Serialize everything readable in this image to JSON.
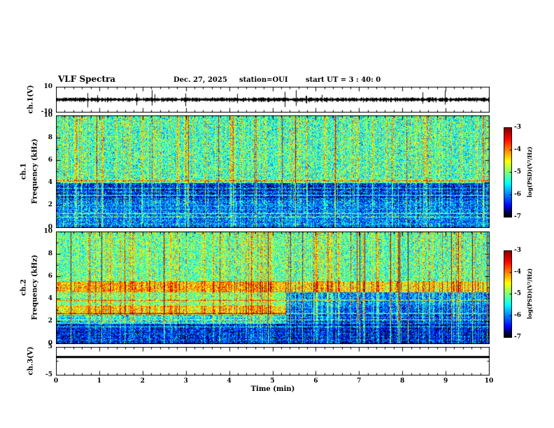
{
  "header": {
    "title": "VLF Spectra",
    "date": "Dec. 27, 2025",
    "station": "station=OUI",
    "start_ut": "start UT =  3 : 40: 0"
  },
  "panels": {
    "ch1_wave": {
      "ylabel": "ch.1(V)",
      "yticks": [
        10,
        -10
      ],
      "ymin": -10,
      "ymax": 10
    },
    "ch1_spec": {
      "channel": "ch.1",
      "ylabel": "Frequency (kHz)",
      "yticks": [
        10,
        8,
        6,
        4,
        2,
        0
      ]
    },
    "ch2_spec": {
      "channel": "ch.2",
      "ylabel": "Frequency (kHz)",
      "yticks": [
        10,
        8,
        6,
        4,
        2,
        0
      ]
    },
    "ch3_wave": {
      "ylabel": "ch.3(V)",
      "yticks": [
        5,
        -5
      ],
      "ymin": -5,
      "ymax": 5
    }
  },
  "xaxis": {
    "label": "Time (min)",
    "ticks": [
      0,
      1,
      2,
      3,
      4,
      5,
      6,
      7,
      8,
      9,
      10
    ],
    "min": 0,
    "max": 10
  },
  "colorbar": {
    "label": "log(PSD)(V²/Hz)",
    "ticks": [
      -3,
      -4,
      -5,
      -6,
      -7
    ],
    "min": -7,
    "max": -3
  },
  "chart_data": [
    {
      "type": "line",
      "name": "ch1_voltage",
      "ylabel": "ch.1(V)",
      "ylim": [
        -10,
        10
      ],
      "xlim": [
        0,
        10
      ],
      "xlabel": "Time (min)",
      "description": "Dense black noise waveform centered on 0 V (about ±1 V) with frequent impulsive sferic spikes reaching toward ±9 V across the whole 10-minute record.",
      "render": {
        "seed": 11,
        "noise_amplitude_v": 1.1,
        "spike_prob": 0.03,
        "spike_amplitude_v": 9
      }
    },
    {
      "type": "heatmap",
      "name": "ch1_spectrogram",
      "ylabel": "Frequency (kHz)",
      "ylim": [
        0,
        10
      ],
      "xlim": [
        0,
        10
      ],
      "colormap": "jet",
      "value_label": "log(PSD)(V²/Hz)",
      "value_range": [
        -7,
        -3
      ],
      "legend_position": "right-colorbar",
      "description": "Broadband vertical sferic streaks over the whole band; 4-10 kHz mostly cyan-green near -5.3, 2.5-4 kHz dark blue quiet band near -6.5, below 2.5 kHz dark blue with many narrow horizontal harmonic lines; occasional intense yellow-red full-height streaks.",
      "render": {
        "seed": 42,
        "bands": [
          {
            "f": [
              4,
              10.01
            ],
            "psd_left": -5.35
          },
          {
            "f": [
              2.5,
              4
            ],
            "psd_left": -6.55
          },
          {
            "f": [
              0,
              2.5
            ],
            "psd_left": -6.15
          }
        ],
        "harmonic_spacing_khz": 0.32,
        "harmonic_max_khz": 4.3,
        "strong_streak_prob": 0.045,
        "noise": 0.55
      }
    },
    {
      "type": "heatmap",
      "name": "ch2_spectrogram",
      "ylabel": "Frequency (kHz)",
      "ylim": [
        0,
        10
      ],
      "xlim": [
        0,
        10
      ],
      "colormap": "jet",
      "value_label": "log(PSD)(V²/Hz)",
      "value_range": [
        -7,
        -3
      ],
      "legend_position": "right-colorbar",
      "description": "Greener overall than ch.1; persistent bright yellow band near 4.6-5.6 kHz across full record; bright yellow-green band near 2.6-3.4 kHz only until about 5.3 min, after which 1.8-4.6 kHz turns dark blue; many vertical sferic streaks, stronger red streaks in right half; harmonic lines below about 4.4 kHz.",
      "render": {
        "seed": 77,
        "split_time_min": 5.3,
        "bands": [
          {
            "f": [
              5.6,
              10.01
            ],
            "psd_left": -5.2,
            "psd_right": -5.3
          },
          {
            "f": [
              4.6,
              5.6
            ],
            "psd_left": -4.35,
            "psd_right": -4.6
          },
          {
            "f": [
              3.4,
              4.6
            ],
            "psd_left": -5.1,
            "psd_right": -6.1
          },
          {
            "f": [
              2.6,
              3.4
            ],
            "psd_left": -4.55,
            "psd_right": -6.3
          },
          {
            "f": [
              1.8,
              2.6
            ],
            "psd_left": -5.7,
            "psd_right": -6.45
          },
          {
            "f": [
              0,
              1.8
            ],
            "psd_left": -6.5,
            "psd_right": -6.6
          }
        ],
        "harmonic_spacing_khz": 0.3,
        "harmonic_max_khz": 4.4,
        "strong_streak_prob": 0.05,
        "right_streak_boost": 1.25,
        "noise": 0.5
      }
    },
    {
      "type": "line",
      "name": "ch3_voltage",
      "ylabel": "ch.3(V)",
      "ylim": [
        -5,
        5
      ],
      "xlim": [
        0,
        10
      ],
      "description": "Flat thick black line at a constant level of about +1.5 V (no signal on channel 3).",
      "render": {
        "value_v": 1.5,
        "thickness_px": 3
      }
    }
  ]
}
